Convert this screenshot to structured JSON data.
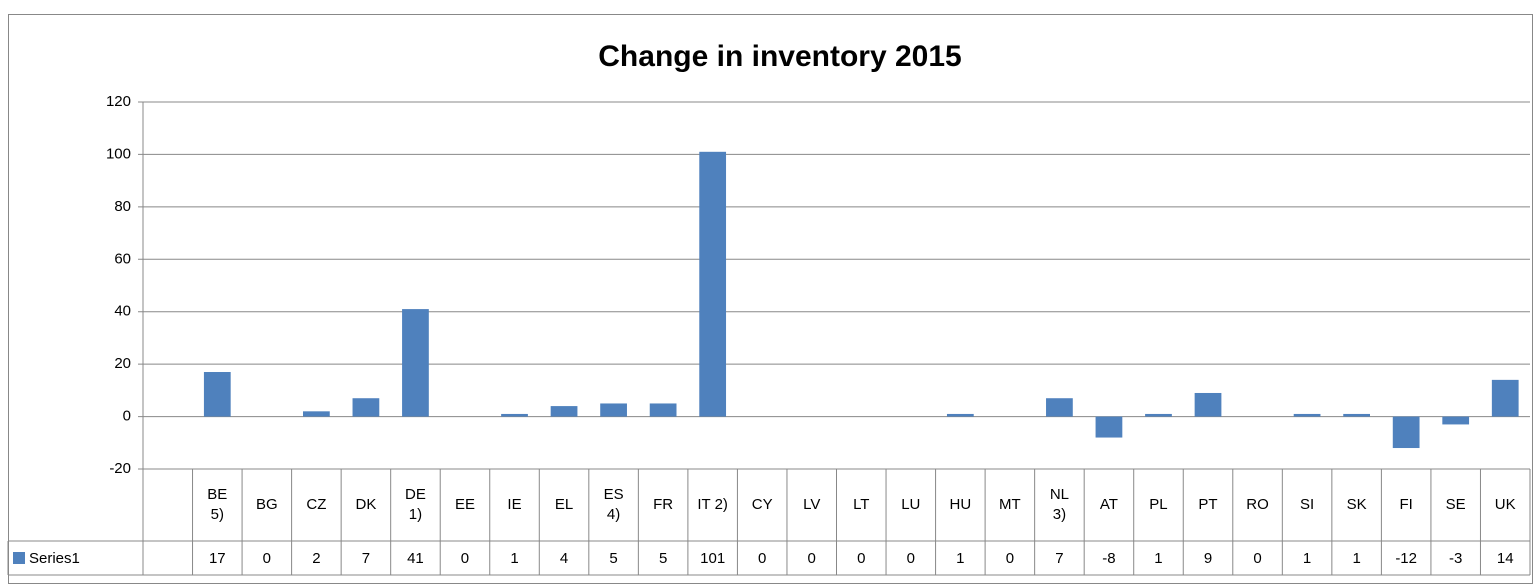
{
  "chart_data": {
    "type": "bar",
    "title": "Change in inventory 2015",
    "categories": [
      null,
      "BE\n5)",
      "BG",
      "CZ",
      "DK",
      "DE\n1)",
      "EE",
      "IE",
      "EL",
      "ES\n4)",
      "FR",
      "IT 2)",
      "CY",
      "LV",
      "LT",
      "LU",
      "HU",
      "MT",
      "NL\n3)",
      "AT",
      "PL",
      "PT",
      "RO",
      "SI",
      "SK",
      "FI",
      "SE",
      "UK"
    ],
    "series": [
      {
        "name": "Series1",
        "color": "#4f81bd",
        "values": [
          null,
          17,
          0,
          2,
          7,
          41,
          0,
          1,
          4,
          5,
          5,
          101,
          0,
          0,
          0,
          0,
          1,
          0,
          7,
          -8,
          1,
          9,
          0,
          1,
          1,
          -12,
          -3,
          14
        ]
      }
    ],
    "ylim": [
      -20,
      120
    ],
    "yticks": [
      -20,
      0,
      20,
      40,
      60,
      80,
      100,
      120
    ],
    "grid": true,
    "legend": "data-table"
  }
}
